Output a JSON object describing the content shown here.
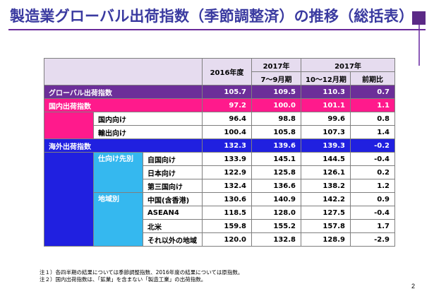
{
  "title": "製造業グローバル出荷指数（季節調整済）の推移（総括表）",
  "table": {
    "header": {
      "col1_year": "2016年度",
      "col2_year": "2017年",
      "col2_period": "7～9月期",
      "col3_year": "2017年",
      "col3_period": "10～12月期",
      "col4_label": "前期比"
    },
    "rows": {
      "global": {
        "label": "グローバル出荷指数",
        "values": [
          "105.7",
          "109.5",
          "110.3",
          "0.7"
        ]
      },
      "domestic": {
        "label": "国内出荷指数",
        "values": [
          "97.2",
          "100.0",
          "101.1",
          "1.1"
        ]
      },
      "domestic_for": {
        "label": "国内向け",
        "values": [
          "96.4",
          "98.8",
          "99.6",
          "0.8"
        ]
      },
      "import_for": {
        "label": "輸出向け",
        "values": [
          "100.4",
          "105.8",
          "107.3",
          "1.4"
        ]
      },
      "overseas": {
        "label": "海外出荷指数",
        "values": [
          "132.3",
          "139.6",
          "139.3",
          "-0.2"
        ]
      },
      "dest_group_label": "仕向け先別",
      "own_country": {
        "label": "自国向け",
        "values": [
          "133.9",
          "145.1",
          "144.5",
          "-0.4"
        ]
      },
      "japan_for": {
        "label": "日本向け",
        "values": [
          "122.9",
          "125.8",
          "126.1",
          "0.2"
        ]
      },
      "third_country": {
        "label": "第三国向け",
        "values": [
          "132.4",
          "136.6",
          "138.2",
          "1.2"
        ]
      },
      "region_group_label": "地域別",
      "china": {
        "label": "中国(含香港)",
        "values": [
          "130.6",
          "140.9",
          "142.2",
          "0.9"
        ]
      },
      "asean": {
        "label": "ASEAN4",
        "values": [
          "118.5",
          "128.0",
          "127.5",
          "-0.4"
        ]
      },
      "north_america": {
        "label": "北米",
        "values": [
          "159.8",
          "155.2",
          "157.8",
          "1.7"
        ]
      },
      "other_regions": {
        "label": "それ以外の地域",
        "values": [
          "120.0",
          "132.8",
          "128.9",
          "-2.9"
        ]
      }
    }
  },
  "notes": [
    "注１）各四半期の結果については季節調整指数、2016年度の結果については原指数。",
    "注２）国内出荷指数は、「鉱業」を含まない「製造工業」の出荷指数。"
  ],
  "page_number": "2",
  "colors": {
    "title": "#3a3aa0",
    "global": "#6c2e99",
    "domestic": "#ff1a8c",
    "overseas": "#2020e0",
    "group": "#35b8ef",
    "header": "#e6dcef"
  }
}
